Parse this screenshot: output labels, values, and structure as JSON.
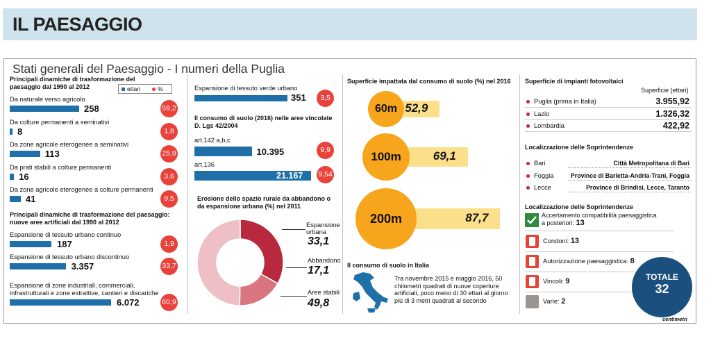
{
  "banner": {
    "title": "IL PAESAGGIO"
  },
  "main_title": "Stati generali del Paesaggio - I numeri della Puglia",
  "legend": {
    "ettari": "ettari",
    "pct": "%"
  },
  "col1": {
    "heading1": "Principali dinamiche di trasformazione del paesaggio dal 1990 al 2012",
    "rows1": [
      {
        "label": "Da naturale verso agricolo",
        "value": "258",
        "pct": "59,2"
      },
      {
        "label": "Da colture permanenti a seminativi",
        "value": "8",
        "pct": "1,8"
      },
      {
        "label": "Da zone agricole eterogenee a seminativi",
        "value": "113",
        "pct": "25,9"
      },
      {
        "label": "Da prati stabili a colture permanenti",
        "value": "16",
        "pct": "3,6"
      },
      {
        "label": "Da zone agricole eterogenee a colture permanenti",
        "value": "41",
        "pct": "9,5"
      }
    ],
    "heading2": "Principali dinamiche di trasformazione del paesaggio: nuove aree artificiali dal 1990 al 2012",
    "rows2": [
      {
        "label": "Espansione di tessuto urbano continuo",
        "value": "187",
        "pct": "1,9"
      },
      {
        "label": "Espansione di tessuto urbano discontinuo",
        "value": "3.357",
        "pct": "33,7"
      },
      {
        "label": "Espansione di zone industriali, commerciali, infrastrutturali e zone estrattive, cantieri e discariche",
        "value": "6.072",
        "pct": "60,9"
      }
    ]
  },
  "col2": {
    "verde": {
      "label": "Espansione di tessuto verde urbano",
      "value": "351",
      "pct": "3,5"
    },
    "heading_vincolate": "Il consumo di suolo (2016) nelle aree vincolate D. Lgs 42/2004",
    "rows": [
      {
        "label": "art.142 a,b,c",
        "value": "10.395",
        "pct": "9,9"
      },
      {
        "label": "art.136",
        "value": "21.167",
        "pct": "9,54"
      }
    ],
    "heading_erosione": "Erosione dello spazio rurale da abbandono o da espansione urbana  (%) nel 2011",
    "donut": [
      {
        "label": "Espansione urbana",
        "value": "33,1",
        "color": "#b8293e"
      },
      {
        "label": "Abbandono",
        "value": "17,1",
        "color": "#d9757f"
      },
      {
        "label": "Aree stabili",
        "value": "49,8",
        "color": "#eec0c6"
      }
    ]
  },
  "col3": {
    "heading": "Superficie impattata dal consumo di suolo (%) nel 2016",
    "items": [
      {
        "label": "60m",
        "value": "52,9"
      },
      {
        "label": "100m",
        "value": "69,1"
      },
      {
        "label": "200m",
        "value": "87,7"
      }
    ],
    "italia_heading": "Il consumo di suolo in Italia",
    "italia_text": "Tra novembre 2015 e maggio 2016, 50 chilometri quadrati di nuove coperture artificiali, poco meno di 30 ettari al giorno più di 3 metri quadrati al secondo"
  },
  "col4": {
    "foto_heading": "Superficie di impianti fotovoltaici",
    "foto_sub": "Superficie (ettari)",
    "foto_rows": [
      {
        "label": "Puglia (prima in Italia)",
        "value": "3.955,92"
      },
      {
        "label": "Lazio",
        "value": "1.326,32"
      },
      {
        "label": "Lombardia",
        "value": "422,92"
      }
    ],
    "sopr_heading": "Localizzazione delle Soprintendenze",
    "sopr_rows": [
      {
        "label": "Bari",
        "value": "Città Metropolitana di Bari"
      },
      {
        "label": "Foggia",
        "value": "Province di Barletta-Andria-Trani, Foggia"
      },
      {
        "label": "Lecce",
        "value": "Province di Brindisi, Lecce, Taranto"
      }
    ],
    "sopr_heading2": "Localizzazione delle Soprintendenze",
    "acc_text1": "Accertamento compatibilità paesaggistica",
    "acc_text2": "a posteriori:",
    "acc_value": "13",
    "items": [
      {
        "label": "Condoni:",
        "value": "13",
        "color": "#e8423a"
      },
      {
        "label": "Autorizzazione paesaggistica:",
        "value": "8",
        "color": "#e8423a"
      },
      {
        "label": "Vincoli:",
        "value": "9",
        "color": "#e8423a"
      },
      {
        "label": "Varie:",
        "value": "2",
        "color": "#9a9590"
      }
    ],
    "totale_label": "TOTALE",
    "totale_value": "32",
    "logo": "centimetri"
  },
  "chart_data": [
    {
      "type": "bar",
      "title": "Principali dinamiche di trasformazione del paesaggio dal 1990 al 2012",
      "categories": [
        "Da naturale verso agricolo",
        "Da colture permanenti a seminativi",
        "Da zone agricole eterogenee a seminativi",
        "Da prati stabili a colture permanenti",
        "Da zone agricole eterogenee a colture permanenti"
      ],
      "series": [
        {
          "name": "ettari",
          "values": [
            258,
            8,
            113,
            16,
            41
          ]
        },
        {
          "name": "%",
          "values": [
            59.2,
            1.8,
            25.9,
            3.6,
            9.5
          ]
        }
      ]
    },
    {
      "type": "bar",
      "title": "Principali dinamiche di trasformazione del paesaggio: nuove aree artificiali dal 1990 al 2012",
      "categories": [
        "Espansione di tessuto urbano continuo",
        "Espansione di tessuto urbano discontinuo",
        "Espansione di zone industriali, commerciali, infrastrutturali e zone estrattive, cantieri e discariche",
        "Espansione di tessuto verde urbano"
      ],
      "series": [
        {
          "name": "ettari",
          "values": [
            187,
            3357,
            6072,
            351
          ]
        },
        {
          "name": "%",
          "values": [
            1.9,
            33.7,
            60.9,
            3.5
          ]
        }
      ]
    },
    {
      "type": "bar",
      "title": "Il consumo di suolo (2016) nelle aree vincolate D. Lgs 42/2004",
      "categories": [
        "art.142 a,b,c",
        "art.136"
      ],
      "series": [
        {
          "name": "ettari",
          "values": [
            10395,
            21167
          ]
        },
        {
          "name": "%",
          "values": [
            9.9,
            9.54
          ]
        }
      ]
    },
    {
      "type": "pie",
      "title": "Erosione dello spazio rurale da abbandono o da espansione urbana  (%) nel 2011",
      "categories": [
        "Espansione urbana",
        "Abbandono",
        "Aree stabili"
      ],
      "values": [
        33.1,
        17.1,
        49.8
      ]
    },
    {
      "type": "bar",
      "title": "Superficie impattata dal consumo di suolo (%) nel 2016",
      "categories": [
        "60m",
        "100m",
        "200m"
      ],
      "values": [
        52.9,
        69.1,
        87.7
      ],
      "ylim": [
        0,
        100
      ]
    },
    {
      "type": "table",
      "title": "Superficie di impianti fotovoltaici",
      "categories": [
        "Puglia (prima in Italia)",
        "Lazio",
        "Lombardia"
      ],
      "values": [
        3955.92,
        1326.32,
        422.92
      ]
    }
  ]
}
